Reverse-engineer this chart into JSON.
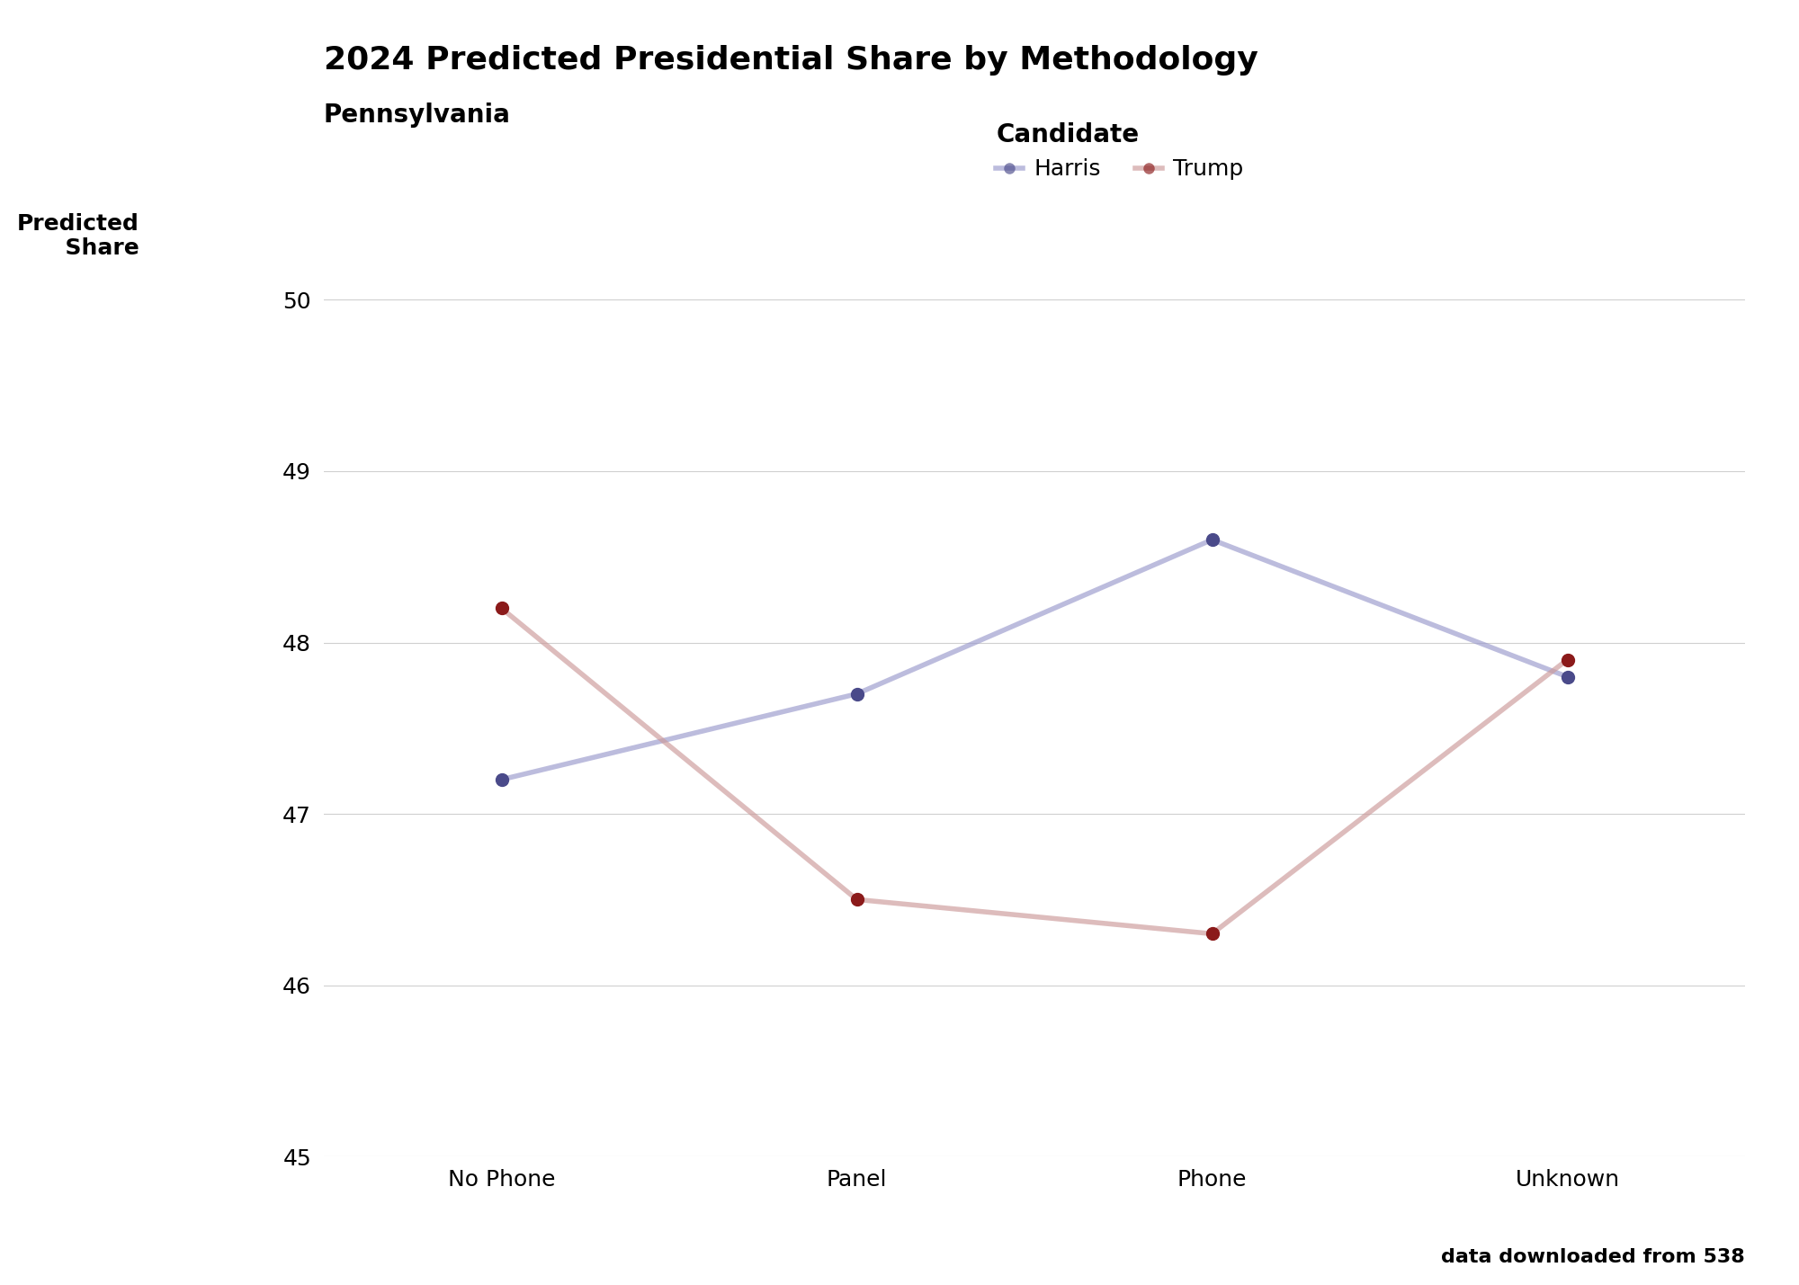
{
  "title": "2024 Predicted Presidential Share by Methodology",
  "subtitle": "Pennsylvania",
  "categories": [
    "No Phone",
    "Panel",
    "Phone",
    "Unknown"
  ],
  "harris": [
    47.2,
    47.7,
    48.6,
    47.8
  ],
  "trump": [
    48.2,
    46.5,
    46.3,
    47.9
  ],
  "harris_color": "#9999cc",
  "harris_dot_color": "#4a4a8a",
  "trump_color": "#cc9999",
  "trump_dot_color": "#8b1a1a",
  "background_color": "#ffffff",
  "grid_color": "#d0d0d0",
  "ylim": [
    45,
    50.4
  ],
  "yticks": [
    45,
    46,
    47,
    48,
    49,
    50
  ],
  "legend_title": "Candidate",
  "legend_harris": "Harris",
  "legend_trump": "Trump",
  "footer": "data downloaded from 538",
  "title_fontsize": 26,
  "subtitle_fontsize": 20,
  "ylabel_fontsize": 18,
  "tick_fontsize": 18,
  "legend_fontsize": 18,
  "footer_fontsize": 16,
  "line_width": 4,
  "dot_size": 100,
  "line_alpha": 0.65
}
